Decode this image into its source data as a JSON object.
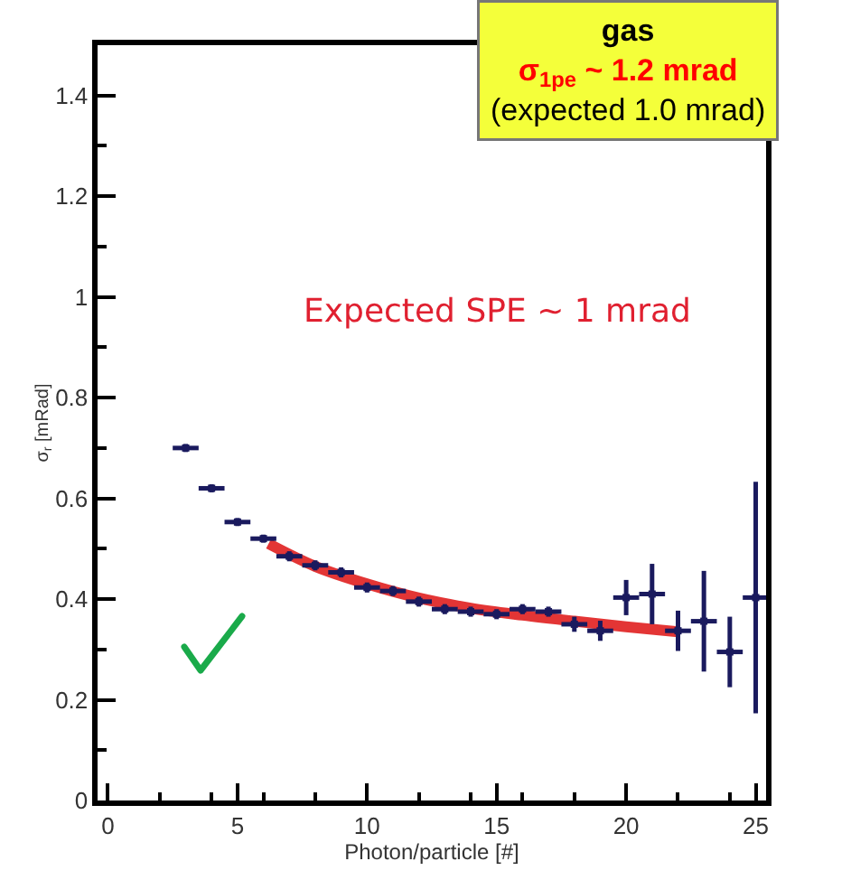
{
  "chart_data": {
    "type": "scatter",
    "xlabel": "Photon/particle [#]",
    "ylabel": "σ$_{r}$ [mRad]",
    "xlim": [
      -0.4,
      25.4
    ],
    "ylim": [
      0,
      1.5
    ],
    "xticks": [
      0,
      5,
      10,
      15,
      20,
      25
    ],
    "yticks": [
      0,
      0.2,
      0.4,
      0.6,
      0.8,
      1,
      1.2,
      1.4
    ],
    "grid": false,
    "series": [
      {
        "color": "#1a1a5e",
        "marker": "square",
        "x": [
          3,
          4,
          5,
          6,
          7,
          8,
          9,
          10,
          11,
          12,
          13,
          14,
          15,
          16,
          17,
          18,
          19,
          20,
          21,
          22,
          23,
          24,
          25
        ],
        "values": [
          0.7,
          0.62,
          0.553,
          0.52,
          0.485,
          0.467,
          0.453,
          0.423,
          0.416,
          0.395,
          0.38,
          0.375,
          0.37,
          0.38,
          0.375,
          0.35,
          0.337,
          0.403,
          0.41,
          0.337,
          0.356,
          0.295,
          0.403
        ],
        "errors": [
          0.008,
          0.008,
          0.008,
          0.008,
          0.01,
          0.01,
          0.01,
          0.01,
          0.01,
          0.01,
          0.01,
          0.01,
          0.01,
          0.01,
          0.01,
          0.015,
          0.02,
          0.035,
          0.06,
          0.04,
          0.1,
          0.07,
          0.23
        ],
        "xerrors": [
          0.5,
          0.5,
          0.5,
          0.5,
          0.5,
          0.5,
          0.5,
          0.5,
          0.5,
          0.5,
          0.5,
          0.5,
          0.5,
          0.5,
          0.5,
          0.5,
          0.5,
          0.5,
          0.5,
          0.5,
          0.5,
          0.5,
          0.5
        ]
      },
      {
        "type": "line",
        "color": "#e02020",
        "x": [
          6.2,
          8,
          10,
          12,
          14,
          16,
          18,
          20,
          22
        ],
        "values": [
          0.51,
          0.465,
          0.43,
          0.402,
          0.382,
          0.368,
          0.356,
          0.345,
          0.335
        ]
      }
    ],
    "annotations": [
      "gas",
      "σ$_{1pe}$ ~ 1.2 mrad",
      "(expected 1.0 mrad)",
      "Expected SPE ~ 1 mrad"
    ]
  }
}
